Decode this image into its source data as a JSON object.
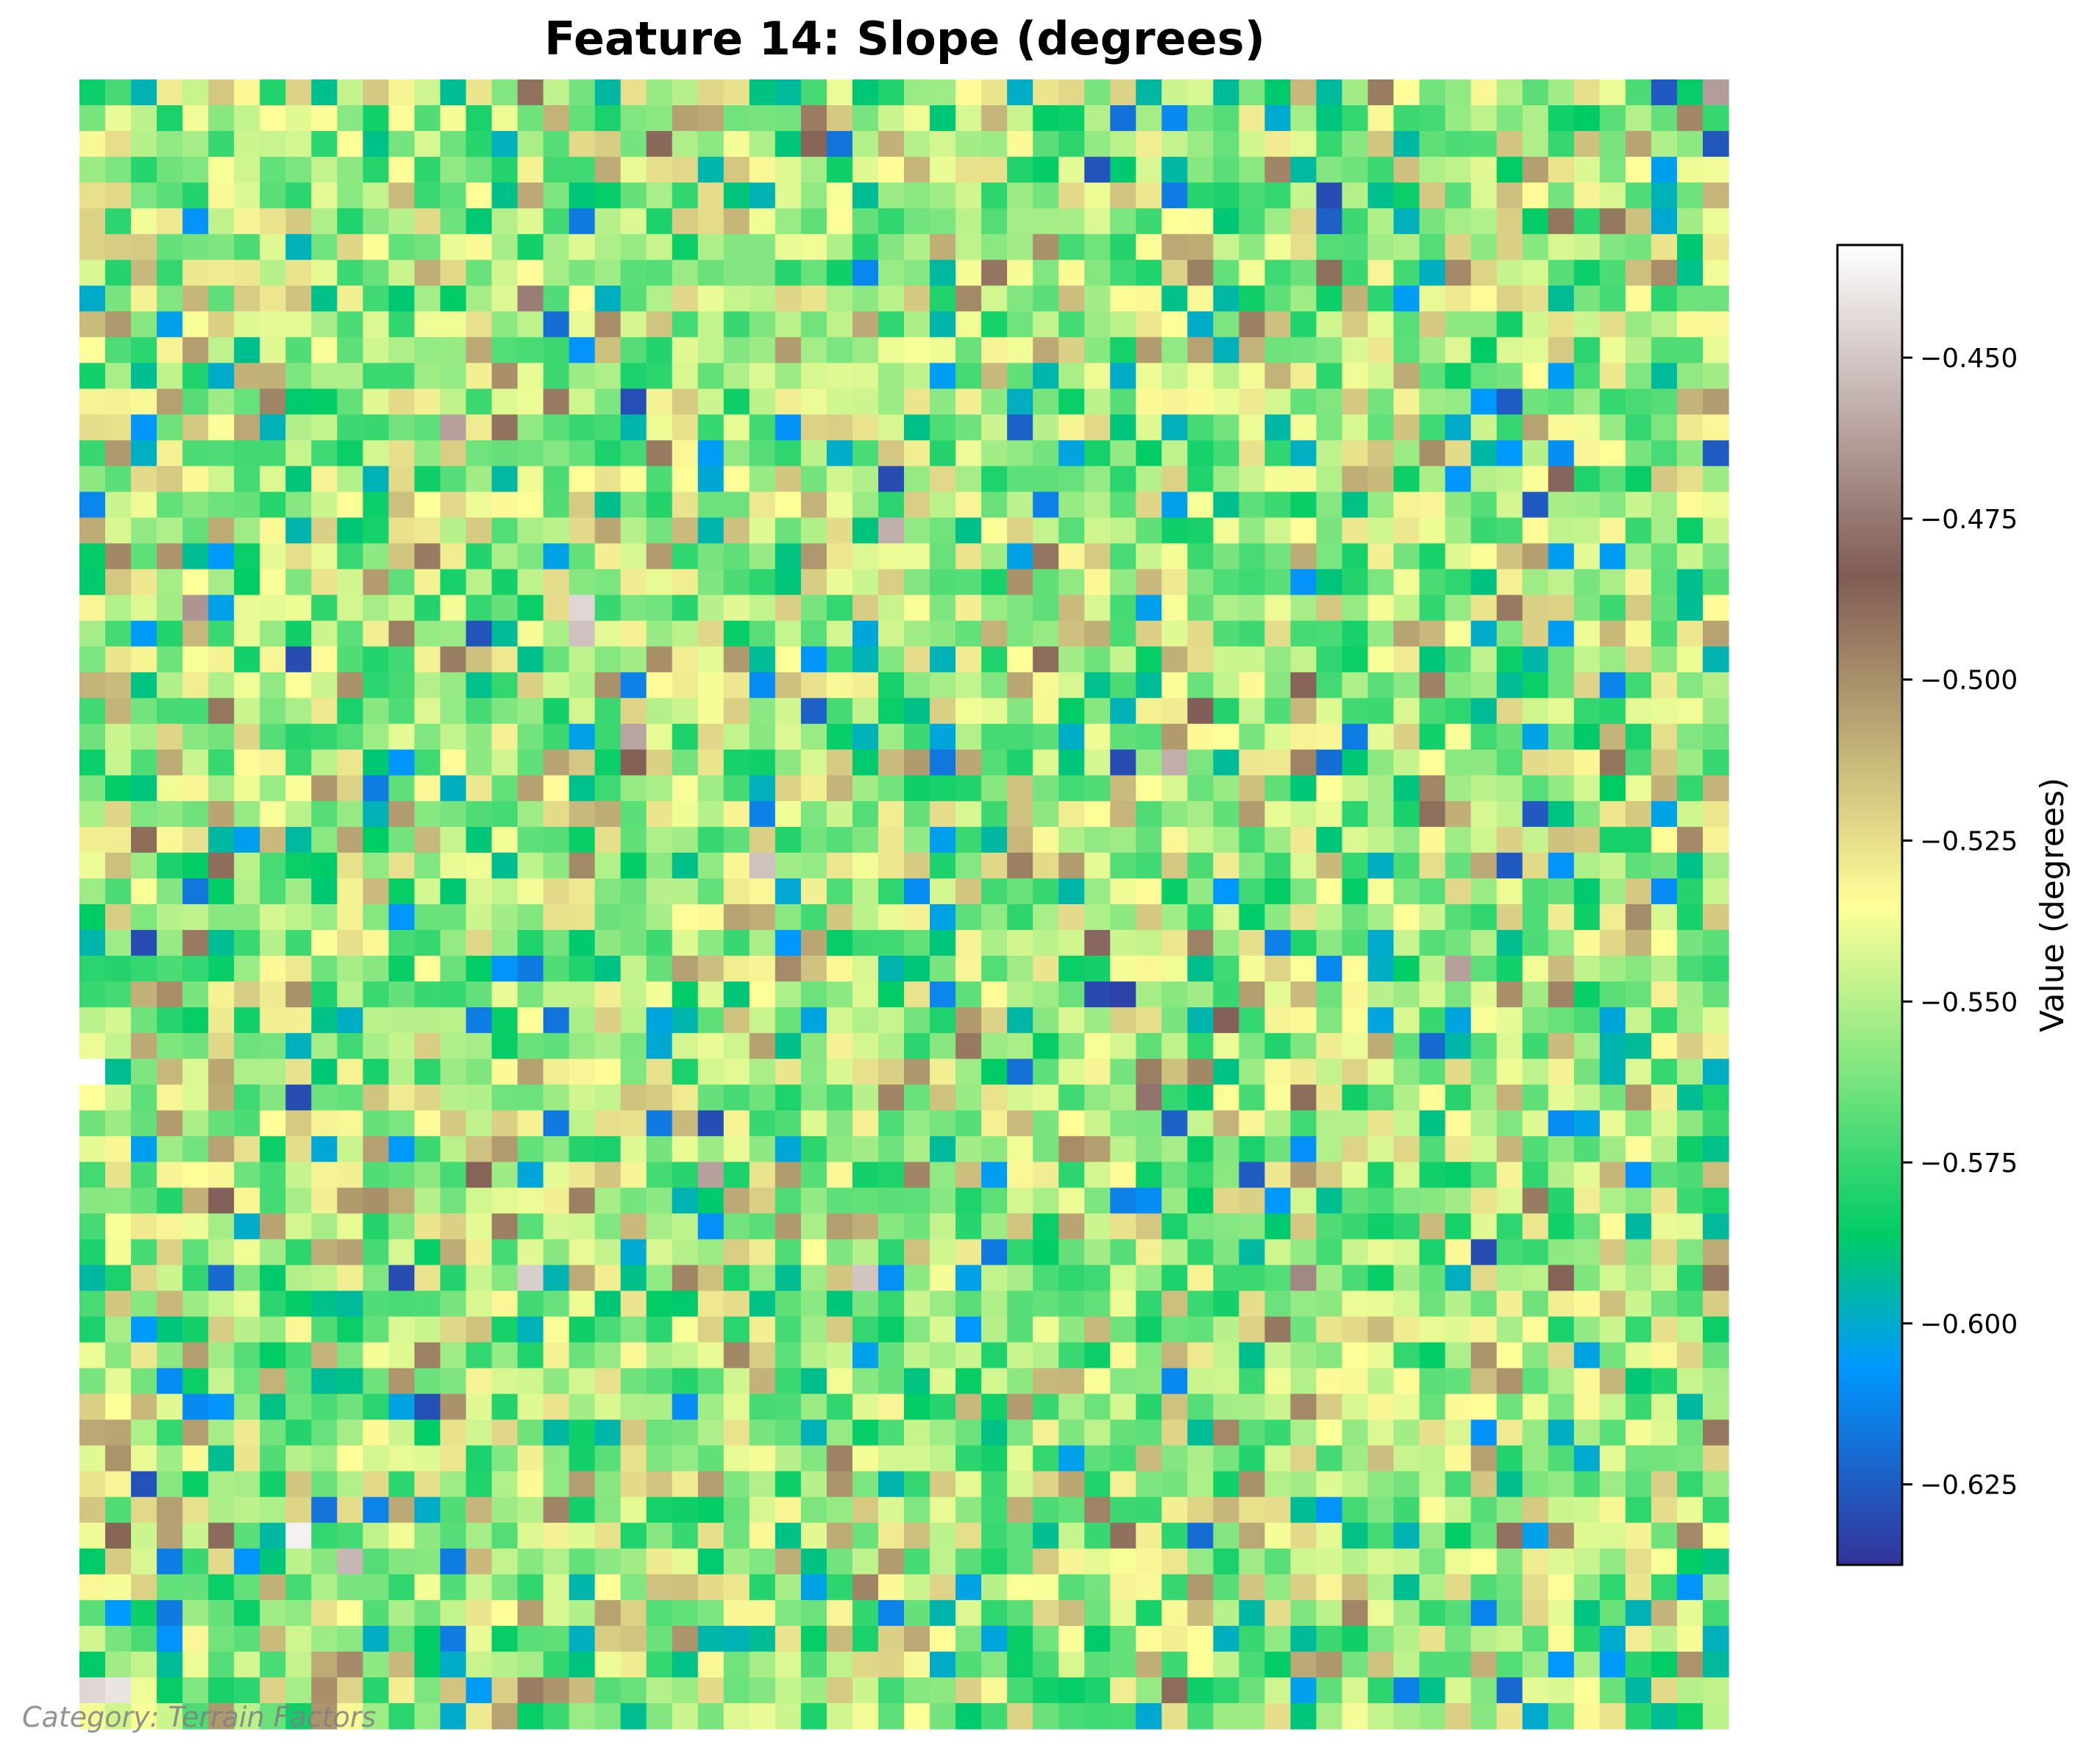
{
  "chart_data": {
    "type": "heatmap",
    "title": "Feature 14: Slope (degrees)",
    "colorbar_label": "Value (degrees)",
    "colormap": "terrain",
    "vmin": -0.6375,
    "vmax": -0.4325,
    "colorbar_ticks": [
      -0.45,
      -0.475,
      -0.5,
      -0.525,
      -0.55,
      -0.575,
      -0.6,
      -0.625
    ],
    "colorbar_tick_labels": [
      "−0.450",
      "−0.475",
      "−0.500",
      "−0.525",
      "−0.550",
      "−0.575",
      "−0.600",
      "−0.625"
    ],
    "grid_size": [
      64,
      64
    ],
    "value_range_observed": [
      -0.633,
      -0.433
    ],
    "typical_value": -0.553,
    "hotspots": [
      {
        "row": 20,
        "col": 19,
        "value": -0.445
      },
      {
        "row": 21,
        "col": 19,
        "value": -0.452
      },
      {
        "row": 13,
        "col": 14,
        "value": -0.462
      },
      {
        "row": 17,
        "col": 31,
        "value": -0.458
      },
      {
        "row": 25,
        "col": 21,
        "value": -0.461
      },
      {
        "row": 30,
        "col": 26,
        "value": -0.452
      },
      {
        "row": 38,
        "col": 0,
        "value": -0.433
      },
      {
        "row": 42,
        "col": 24,
        "value": -0.462
      },
      {
        "row": 46,
        "col": 17,
        "value": -0.448
      },
      {
        "row": 46,
        "col": 30,
        "value": -0.451
      },
      {
        "row": 56,
        "col": 8,
        "value": -0.437
      },
      {
        "row": 57,
        "col": 10,
        "value": -0.455
      },
      {
        "row": 62,
        "col": 0,
        "value": -0.445
      },
      {
        "row": 62,
        "col": 1,
        "value": -0.441
      }
    ],
    "coldspots": [
      {
        "row": 12,
        "col": 21,
        "value": -0.629
      },
      {
        "row": 35,
        "col": 39,
        "value": -0.631
      },
      {
        "row": 35,
        "col": 40,
        "value": -0.633
      },
      {
        "row": 28,
        "col": 56,
        "value": -0.626
      },
      {
        "row": 42,
        "col": 45,
        "value": -0.625
      },
      {
        "row": 5,
        "col": 48,
        "value": -0.624
      },
      {
        "row": 14,
        "col": 63,
        "value": -0.625
      }
    ],
    "annotation": "Category: Terrain Factors",
    "seed": 14
  }
}
